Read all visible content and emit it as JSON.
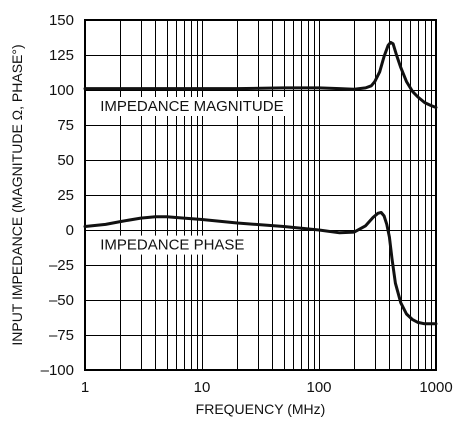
{
  "chart_data": {
    "type": "line",
    "title": "",
    "xlabel": "FREQUENCY (MHz)",
    "ylabel": "INPUT IMPEDANCE (MAGNITUDE Ω, PHASE°)",
    "x_scale": "log",
    "xlim": [
      1,
      1000
    ],
    "ylim": [
      -100,
      150
    ],
    "x_ticks": [
      "1",
      "10",
      "100",
      "1000"
    ],
    "y_ticks": [
      "150",
      "125",
      "100",
      "75",
      "50",
      "25",
      "0",
      "–25",
      "–50",
      "–75",
      "–100"
    ],
    "grid": true,
    "series": [
      {
        "name": "IMPEDANCE MAGNITUDE",
        "points": [
          [
            1,
            101
          ],
          [
            2,
            101
          ],
          [
            5,
            101
          ],
          [
            10,
            101
          ],
          [
            20,
            101
          ],
          [
            50,
            101.5
          ],
          [
            100,
            101.5
          ],
          [
            150,
            101
          ],
          [
            200,
            100.5
          ],
          [
            250,
            101.5
          ],
          [
            280,
            103
          ],
          [
            300,
            106
          ],
          [
            330,
            113
          ],
          [
            360,
            124
          ],
          [
            390,
            132
          ],
          [
            410,
            134
          ],
          [
            430,
            133
          ],
          [
            460,
            125
          ],
          [
            500,
            116
          ],
          [
            560,
            106
          ],
          [
            630,
            99
          ],
          [
            700,
            95
          ],
          [
            800,
            91
          ],
          [
            900,
            89
          ],
          [
            1000,
            87.5
          ]
        ]
      },
      {
        "name": "IMPEDANCE PHASE",
        "points": [
          [
            1,
            2.5
          ],
          [
            1.5,
            4
          ],
          [
            2,
            6
          ],
          [
            3,
            8.5
          ],
          [
            4,
            9.5
          ],
          [
            5,
            9.5
          ],
          [
            7,
            8.5
          ],
          [
            10,
            7.5
          ],
          [
            20,
            5
          ],
          [
            50,
            2.5
          ],
          [
            100,
            0
          ],
          [
            150,
            -2
          ],
          [
            200,
            -1.5
          ],
          [
            250,
            3
          ],
          [
            290,
            9
          ],
          [
            320,
            12
          ],
          [
            340,
            12.5
          ],
          [
            360,
            10
          ],
          [
            380,
            4
          ],
          [
            400,
            -5
          ],
          [
            420,
            -20
          ],
          [
            450,
            -38
          ],
          [
            500,
            -52
          ],
          [
            560,
            -60
          ],
          [
            630,
            -64
          ],
          [
            700,
            -66
          ],
          [
            800,
            -67
          ],
          [
            1000,
            -67
          ]
        ]
      }
    ]
  }
}
